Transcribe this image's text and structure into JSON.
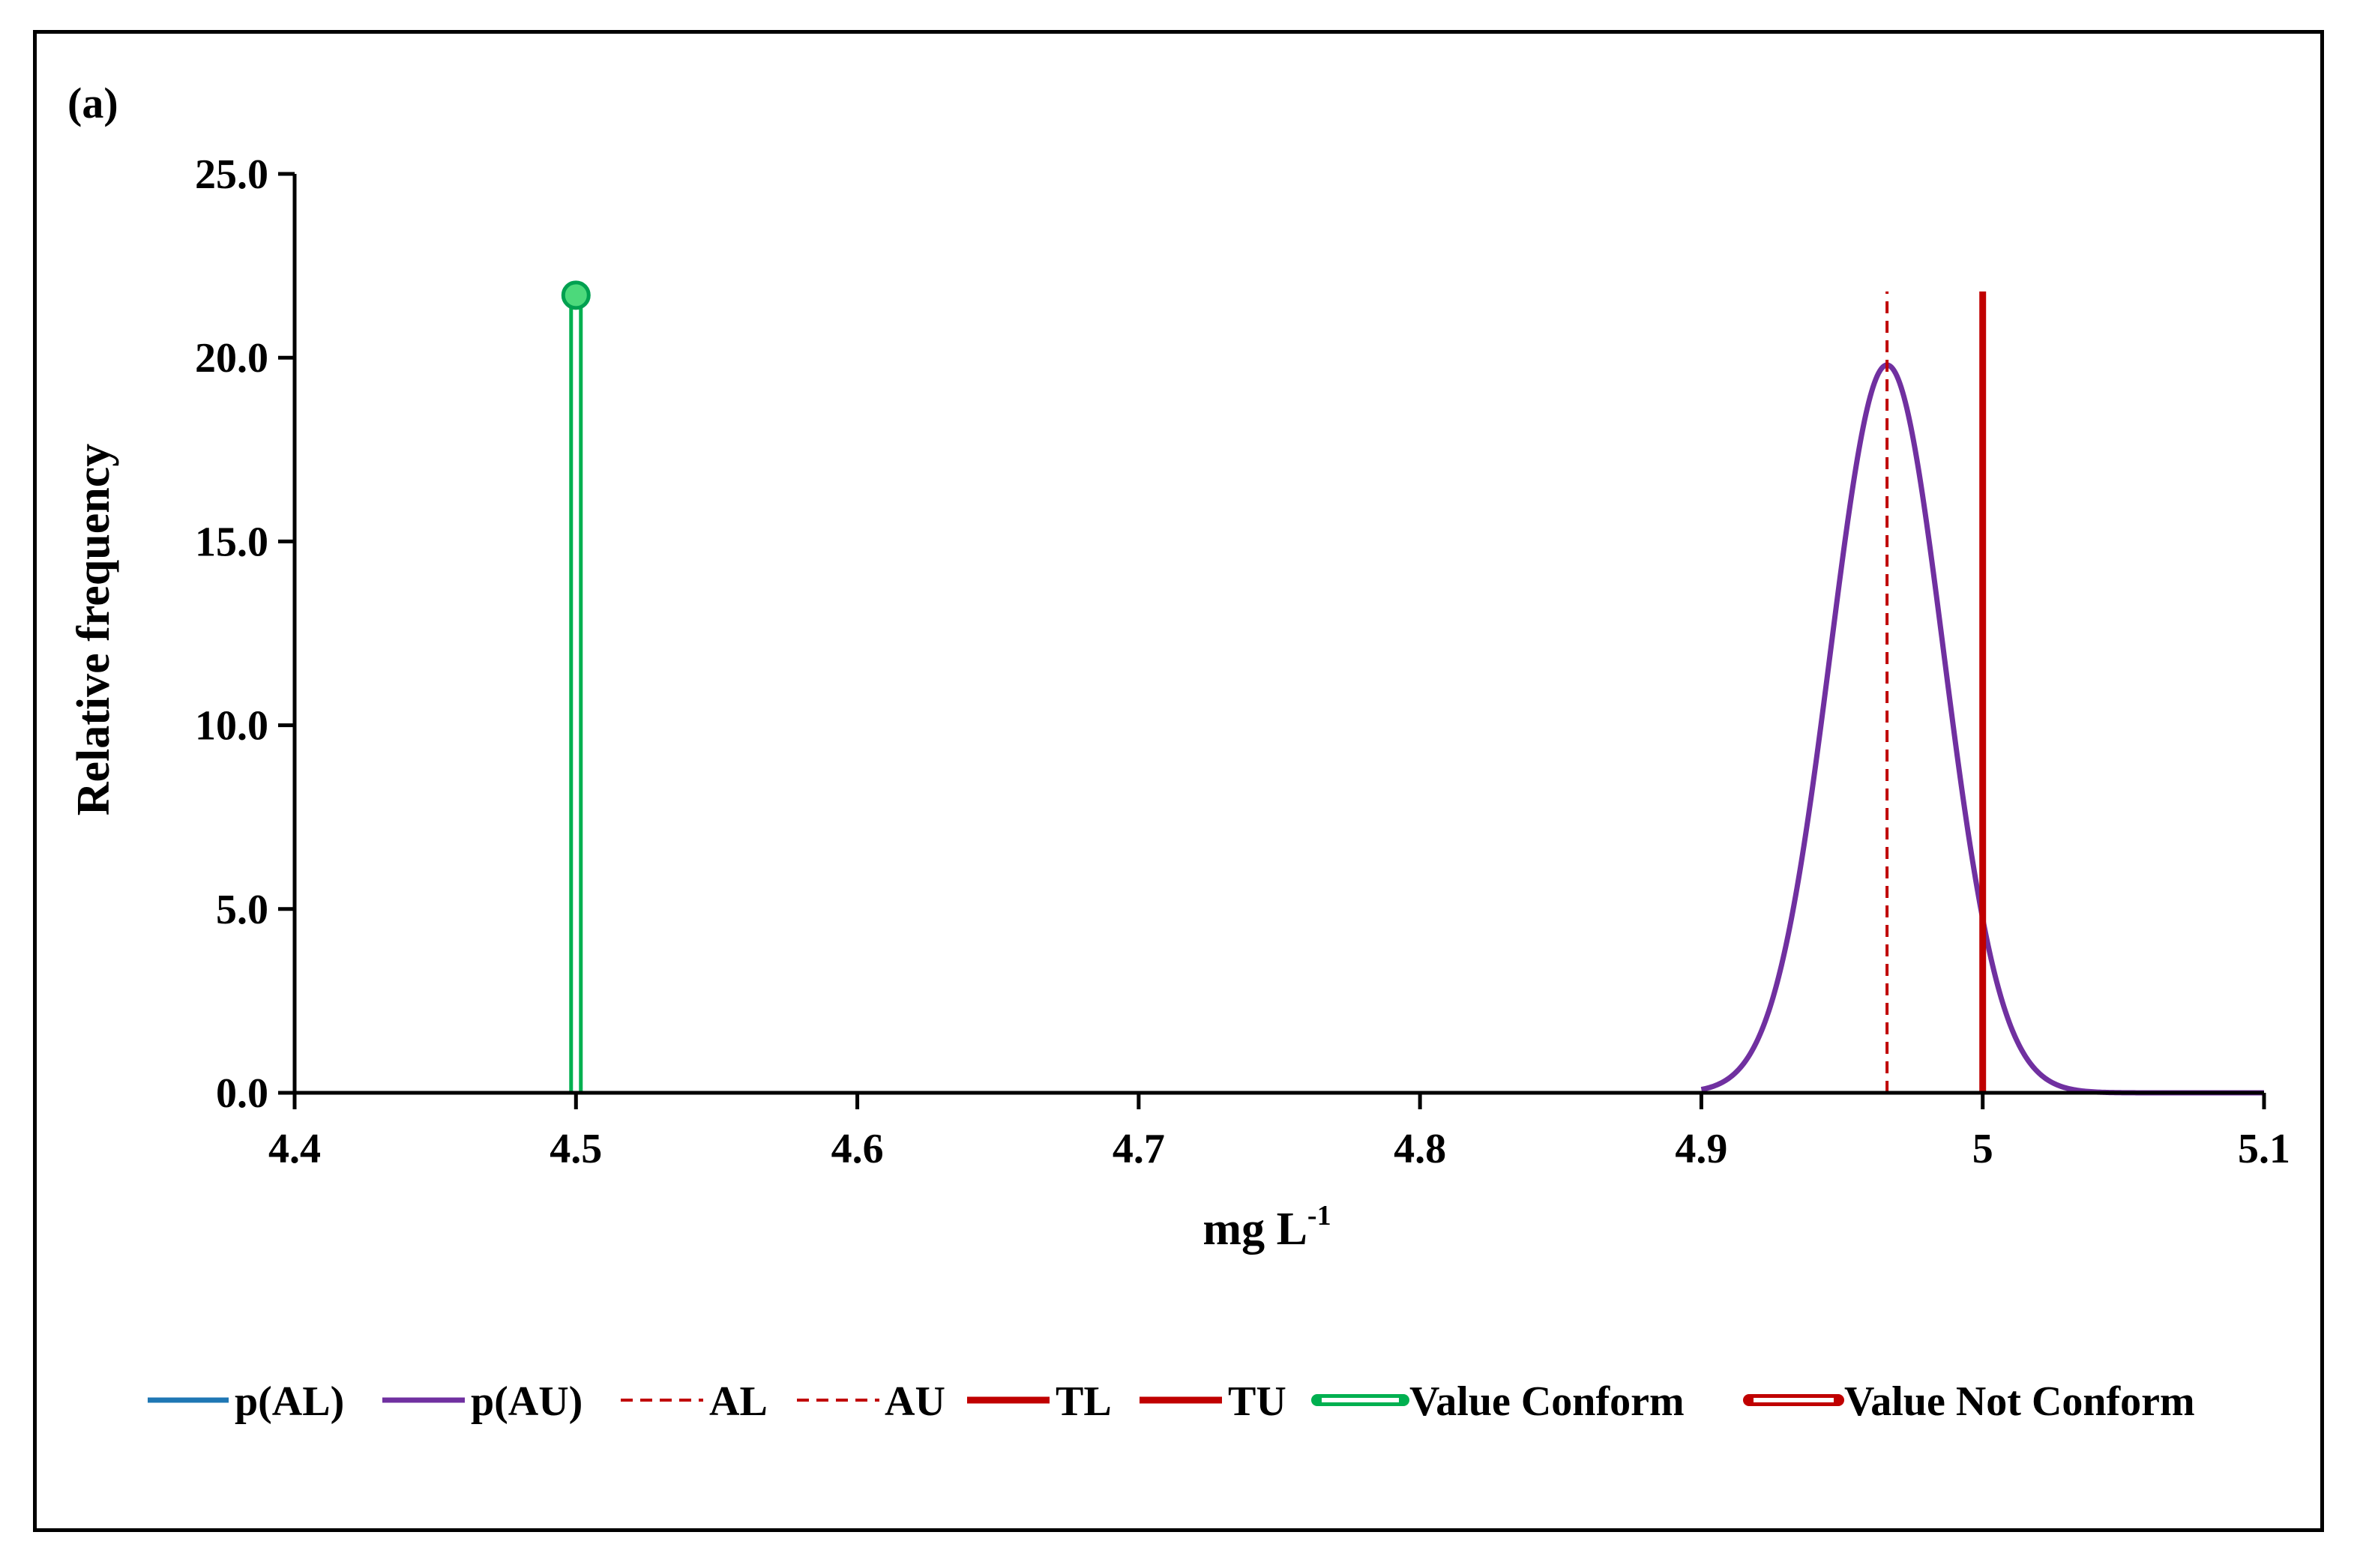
{
  "chart_data": {
    "type": "line",
    "panel_label": "(a)",
    "xlabel": "mg L",
    "xlabel_superscript": "-1",
    "ylabel": "Relative frequency",
    "xlim": [
      4.4,
      5.1
    ],
    "ylim": [
      0,
      25
    ],
    "x_ticks": [
      4.4,
      4.5,
      4.6,
      4.7,
      4.8,
      4.9,
      5.0,
      5.1
    ],
    "x_tick_labels": [
      "4.4",
      "4.5",
      "4.6",
      "4.7",
      "4.8",
      "4.9",
      "5",
      "5.1"
    ],
    "y_ticks": [
      0,
      5,
      10,
      15,
      20,
      25
    ],
    "y_tick_labels": [
      "0.0",
      "5.0",
      "10.0",
      "15.0",
      "20.0",
      "25.0"
    ],
    "grid": false,
    "legend_position": "bottom",
    "series": [
      {
        "name": "p(AL)",
        "kind": "line",
        "style": "solid",
        "color": "#1f77b4",
        "x": [],
        "y": []
      },
      {
        "name": "p(AU)",
        "kind": "normal_curve",
        "style": "solid",
        "color": "#7030a0",
        "mean": 4.966,
        "sd": 0.0201,
        "x_range": [
          4.9,
          5.1
        ],
        "peak": 19.8
      },
      {
        "name": "AL",
        "kind": "vline",
        "style": "dashed",
        "color": "#c00000",
        "x": null
      },
      {
        "name": "AU",
        "kind": "vline",
        "style": "dashed",
        "color": "#c00000",
        "x": 4.966,
        "y_range": [
          0,
          21.8
        ]
      },
      {
        "name": "TL",
        "kind": "vline",
        "style": "solid",
        "color": "#c00000",
        "x": null
      },
      {
        "name": "TU",
        "kind": "vline",
        "style": "solid",
        "color": "#c00000",
        "x": 5.0,
        "y_range": [
          0,
          21.8
        ]
      },
      {
        "name": "Value Conform",
        "kind": "stem",
        "style": "double",
        "color": "#00b050",
        "x": 4.5,
        "y": 21.7
      },
      {
        "name": "Value Not Conform",
        "kind": "stem",
        "style": "double",
        "color": "#c00000",
        "x": null,
        "y": null
      }
    ]
  }
}
